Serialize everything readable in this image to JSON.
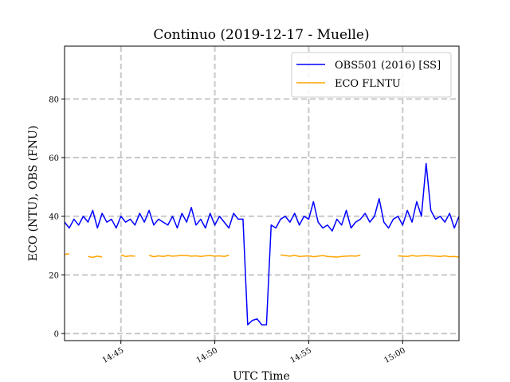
{
  "chart_data": {
    "type": "line",
    "title": "Continuo (2019-12-17 - Muelle)",
    "xlabel": "UTC Time",
    "ylabel": "ECO (NTU), OBS (FNU)",
    "x": [
      "14:42:00",
      "14:42:15",
      "14:42:30",
      "14:42:45",
      "14:43:00",
      "14:43:15",
      "14:43:30",
      "14:43:45",
      "14:44:00",
      "14:44:15",
      "14:44:30",
      "14:44:45",
      "14:45:00",
      "14:45:15",
      "14:45:30",
      "14:45:45",
      "14:46:00",
      "14:46:15",
      "14:46:30",
      "14:46:45",
      "14:47:00",
      "14:47:15",
      "14:47:30",
      "14:47:45",
      "14:48:00",
      "14:48:15",
      "14:48:30",
      "14:48:45",
      "14:49:00",
      "14:49:15",
      "14:49:30",
      "14:49:45",
      "14:50:00",
      "14:50:15",
      "14:50:30",
      "14:50:45",
      "14:51:00",
      "14:51:15",
      "14:51:30",
      "14:51:45",
      "14:52:00",
      "14:52:15",
      "14:52:30",
      "14:52:45",
      "14:53:00",
      "14:53:15",
      "14:53:30",
      "14:53:45",
      "14:54:00",
      "14:54:15",
      "14:54:30",
      "14:54:45",
      "14:55:00",
      "14:55:15",
      "14:55:30",
      "14:55:45",
      "14:56:00",
      "14:56:15",
      "14:56:30",
      "14:56:45",
      "14:57:00",
      "14:57:15",
      "14:57:30",
      "14:57:45",
      "14:58:00",
      "14:58:15",
      "14:58:30",
      "14:58:45",
      "14:59:00",
      "14:59:15",
      "14:59:30",
      "14:59:45",
      "15:00:00",
      "15:00:15",
      "15:00:30",
      "15:00:45",
      "15:01:00",
      "15:01:15",
      "15:01:30",
      "15:01:45",
      "15:02:00",
      "15:02:15",
      "15:02:30",
      "15:02:45",
      "15:03:00"
    ],
    "series": [
      {
        "name": "OBS501 (2016) [SS]",
        "color": "#0000ff",
        "values": [
          38,
          36,
          39,
          37,
          40,
          38,
          42,
          36,
          41,
          38,
          39,
          36,
          40,
          38,
          39,
          37,
          41,
          38,
          42,
          37,
          39,
          38,
          37,
          40,
          36,
          41,
          38,
          43,
          37,
          39,
          36,
          41,
          37,
          40,
          38,
          36,
          41,
          39,
          39,
          3,
          4.5,
          5,
          3,
          3,
          37,
          36,
          39,
          40,
          38,
          41,
          37,
          40,
          39,
          45,
          38,
          36,
          37,
          35,
          39,
          37,
          42,
          36,
          38,
          39,
          41,
          38,
          40,
          46,
          38,
          36,
          39,
          40,
          37,
          42,
          38,
          45,
          40,
          58,
          42,
          39,
          40,
          38,
          41,
          36,
          40
        ]
      },
      {
        "name": "ECO FLNTU",
        "color": "#ffa500",
        "values": [
          27,
          27.2,
          null,
          null,
          null,
          26.3,
          26,
          26.4,
          26.1,
          null,
          null,
          null,
          26.8,
          26.3,
          26.5,
          26.4,
          null,
          null,
          26.7,
          26.2,
          26.5,
          26.3,
          26.6,
          26.4,
          26.5,
          26.7,
          26.6,
          26.4,
          26.5,
          26.3,
          26.5,
          26.6,
          26.4,
          26.5,
          26.3,
          26.7,
          null,
          null,
          null,
          null,
          null,
          null,
          null,
          null,
          null,
          null,
          26.8,
          26.6,
          26.4,
          26.7,
          26.3,
          26.4,
          26.5,
          26.2,
          26.4,
          26.6,
          26.3,
          26.2,
          26.1,
          26.3,
          26.4,
          26.5,
          26.4,
          26.7,
          null,
          null,
          null,
          null,
          null,
          null,
          null,
          26.5,
          26.4,
          26.3,
          26.6,
          26.4,
          26.5,
          26.6,
          26.5,
          26.4,
          26.3,
          26.5,
          26.2,
          26.3,
          26.1
        ]
      }
    ],
    "xlim": [
      "14:42:00",
      "15:03:00"
    ],
    "xticks": [
      "14:45",
      "14:50",
      "14:55",
      "15:00"
    ],
    "ylim": [
      -2.4,
      98
    ],
    "yticks": [
      0,
      20,
      40,
      60,
      80
    ],
    "grid": true,
    "legend": "upper right"
  }
}
